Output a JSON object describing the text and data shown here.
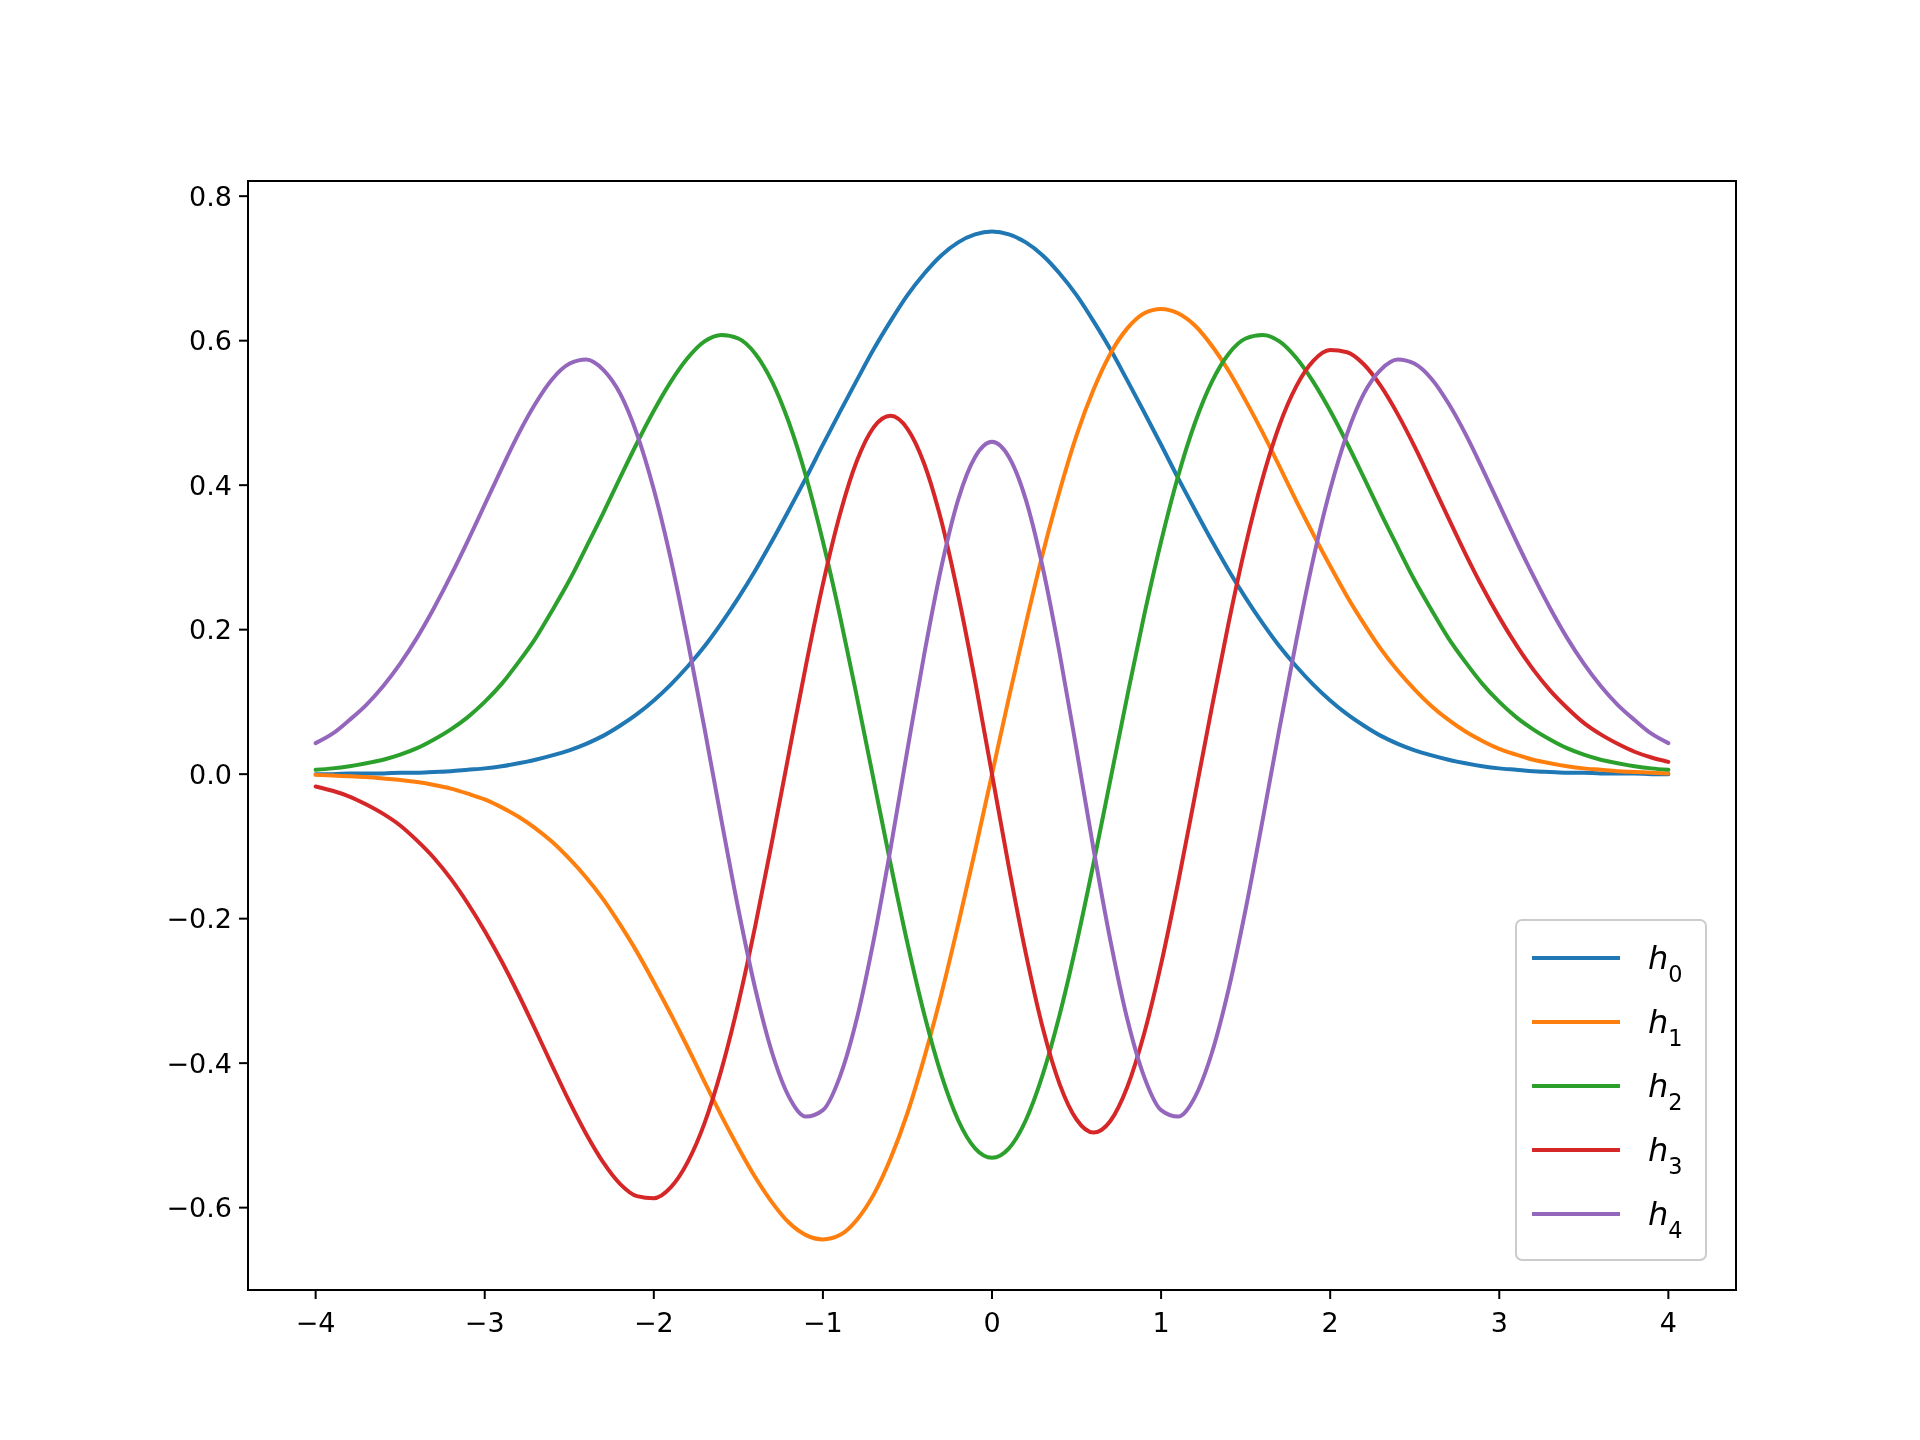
{
  "chart_data": {
    "type": "line",
    "x": [
      -4,
      -3.9,
      -3.8,
      -3.7,
      -3.6,
      -3.5,
      -3.4,
      -3.3,
      -3.2,
      -3.1,
      -3,
      -2.9,
      -2.8,
      -2.7,
      -2.6,
      -2.5,
      -2.4,
      -2.3,
      -2.2,
      -2.1,
      -2,
      -1.9,
      -1.8,
      -1.7,
      -1.6,
      -1.5,
      -1.4,
      -1.3,
      -1.2,
      -1.1,
      -1,
      -0.9,
      -0.8,
      -0.7,
      -0.6,
      -0.5,
      -0.4,
      -0.3,
      -0.2,
      -0.1,
      0,
      0.1,
      0.2,
      0.3,
      0.4,
      0.5,
      0.6,
      0.7,
      0.8,
      0.9,
      1,
      1.1,
      1.2,
      1.3,
      1.4,
      1.5,
      1.6,
      1.7,
      1.8,
      1.9,
      2,
      2.1,
      2.2,
      2.3,
      2.4,
      2.5,
      2.6,
      2.7,
      2.8,
      2.9,
      3,
      3.1,
      3.2,
      3.3,
      3.4,
      3.5,
      3.6,
      3.7,
      3.8,
      3.9,
      4
    ],
    "series": [
      {
        "name": "h$_{0}$",
        "color": "#1f77b4",
        "values": [
          0,
          0,
          0.001,
          0.001,
          0.001,
          0.002,
          0.002,
          0.003,
          0.004,
          0.006,
          0.008,
          0.011,
          0.015,
          0.02,
          0.026,
          0.033,
          0.042,
          0.053,
          0.067,
          0.083,
          0.102,
          0.124,
          0.149,
          0.177,
          0.209,
          0.244,
          0.282,
          0.323,
          0.366,
          0.41,
          0.456,
          0.501,
          0.545,
          0.588,
          0.627,
          0.663,
          0.693,
          0.718,
          0.736,
          0.747,
          0.751,
          0.747,
          0.736,
          0.718,
          0.693,
          0.663,
          0.627,
          0.588,
          0.545,
          0.501,
          0.456,
          0.41,
          0.366,
          0.323,
          0.282,
          0.244,
          0.209,
          0.177,
          0.149,
          0.124,
          0.102,
          0.083,
          0.067,
          0.053,
          0.042,
          0.033,
          0.026,
          0.02,
          0.015,
          0.011,
          0.008,
          0.006,
          0.004,
          0.003,
          0.002,
          0.002,
          0.001,
          0.001,
          0.001,
          0,
          0
        ]
      },
      {
        "name": "h$_{1}$",
        "color": "#ff7f0e",
        "values": [
          -0.001,
          -0.002,
          -0.003,
          -0.004,
          -0.006,
          -0.008,
          -0.011,
          -0.015,
          -0.02,
          -0.027,
          -0.035,
          -0.046,
          -0.059,
          -0.075,
          -0.094,
          -0.117,
          -0.143,
          -0.173,
          -0.208,
          -0.246,
          -0.288,
          -0.332,
          -0.378,
          -0.426,
          -0.473,
          -0.517,
          -0.558,
          -0.593,
          -0.621,
          -0.638,
          -0.644,
          -0.638,
          -0.617,
          -0.582,
          -0.532,
          -0.469,
          -0.392,
          -0.305,
          -0.208,
          -0.106,
          0,
          0.106,
          0.208,
          0.305,
          0.392,
          0.469,
          0.532,
          0.582,
          0.617,
          0.638,
          0.644,
          0.638,
          0.621,
          0.593,
          0.558,
          0.517,
          0.473,
          0.426,
          0.378,
          0.332,
          0.288,
          0.246,
          0.208,
          0.173,
          0.143,
          0.117,
          0.094,
          0.075,
          0.059,
          0.046,
          0.035,
          0.027,
          0.02,
          0.015,
          0.011,
          0.008,
          0.006,
          0.004,
          0.003,
          0.002,
          0.001
        ]
      },
      {
        "name": "h$_{2}$",
        "color": "#2ca02c",
        "values": [
          0.006,
          0.008,
          0.011,
          0.015,
          0.02,
          0.027,
          0.036,
          0.048,
          0.062,
          0.079,
          0.1,
          0.125,
          0.155,
          0.188,
          0.227,
          0.268,
          0.314,
          0.361,
          0.41,
          0.458,
          0.503,
          0.543,
          0.576,
          0.599,
          0.608,
          0.603,
          0.582,
          0.543,
          0.486,
          0.412,
          0.322,
          0.22,
          0.108,
          -0.008,
          -0.124,
          -0.234,
          -0.333,
          -0.416,
          -0.479,
          -0.518,
          -0.531,
          -0.518,
          -0.479,
          -0.416,
          -0.333,
          -0.234,
          -0.124,
          -0.008,
          0.108,
          0.22,
          0.322,
          0.412,
          0.486,
          0.543,
          0.582,
          0.603,
          0.608,
          0.599,
          0.576,
          0.543,
          0.503,
          0.458,
          0.41,
          0.361,
          0.314,
          0.268,
          0.227,
          0.188,
          0.155,
          0.125,
          0.1,
          0.079,
          0.062,
          0.048,
          0.036,
          0.027,
          0.02,
          0.015,
          0.011,
          0.008,
          0.006
        ]
      },
      {
        "name": "h$_{3}$",
        "color": "#d62728",
        "values": [
          -0.017,
          -0.023,
          -0.031,
          -0.042,
          -0.055,
          -0.071,
          -0.092,
          -0.116,
          -0.145,
          -0.179,
          -0.217,
          -0.259,
          -0.305,
          -0.354,
          -0.404,
          -0.453,
          -0.498,
          -0.537,
          -0.567,
          -0.584,
          -0.587,
          -0.572,
          -0.537,
          -0.483,
          -0.409,
          -0.317,
          -0.21,
          -0.092,
          0.03,
          0.151,
          0.263,
          0.359,
          0.433,
          0.48,
          0.496,
          0.478,
          0.429,
          0.351,
          0.248,
          0.129,
          0,
          -0.129,
          -0.248,
          -0.351,
          -0.429,
          -0.478,
          -0.496,
          -0.48,
          -0.433,
          -0.359,
          -0.263,
          -0.151,
          -0.03,
          0.092,
          0.21,
          0.317,
          0.409,
          0.483,
          0.537,
          0.572,
          0.587,
          0.584,
          0.567,
          0.537,
          0.498,
          0.453,
          0.404,
          0.354,
          0.305,
          0.259,
          0.217,
          0.179,
          0.145,
          0.116,
          0.092,
          0.071,
          0.055,
          0.042,
          0.031,
          0.023,
          0.017
        ]
      },
      {
        "name": "h$_{4}$",
        "color": "#9467bd",
        "values": [
          0.043,
          0.056,
          0.075,
          0.096,
          0.122,
          0.153,
          0.189,
          0.23,
          0.275,
          0.323,
          0.373,
          0.423,
          0.471,
          0.513,
          0.547,
          0.568,
          0.574,
          0.56,
          0.527,
          0.471,
          0.394,
          0.298,
          0.185,
          0.063,
          -0.064,
          -0.187,
          -0.297,
          -0.386,
          -0.447,
          -0.474,
          -0.465,
          -0.419,
          -0.339,
          -0.23,
          -0.103,
          0.034,
          0.167,
          0.286,
          0.38,
          0.439,
          0.46,
          0.439,
          0.38,
          0.286,
          0.167,
          0.034,
          -0.103,
          -0.23,
          -0.339,
          -0.419,
          -0.465,
          -0.474,
          -0.447,
          -0.386,
          -0.297,
          -0.187,
          -0.064,
          0.063,
          0.185,
          0.298,
          0.394,
          0.471,
          0.527,
          0.56,
          0.574,
          0.568,
          0.547,
          0.513,
          0.471,
          0.423,
          0.373,
          0.323,
          0.275,
          0.23,
          0.189,
          0.153,
          0.122,
          0.096,
          0.075,
          0.056,
          0.043
        ]
      }
    ],
    "xlim": [
      -4.4,
      4.4
    ],
    "xticks": [
      {
        "value": -4,
        "label": "−4"
      },
      {
        "value": -3,
        "label": "−3"
      },
      {
        "value": -2,
        "label": "−2"
      },
      {
        "value": -1,
        "label": "−1"
      },
      0,
      1,
      2,
      3,
      4
    ],
    "ylim": [
      -0.714,
      0.821
    ],
    "yticks": [
      {
        "value": -0.6,
        "label": "−0.6"
      },
      {
        "value": -0.4,
        "label": "−0.4"
      },
      {
        "value": -0.2,
        "label": "−0.2"
      },
      {
        "value": 0,
        "label": "0.0"
      },
      {
        "value": 0.2,
        "label": "0.2"
      },
      {
        "value": 0.4,
        "label": "0.4"
      },
      {
        "value": 0.6,
        "label": "0.6"
      },
      {
        "value": 0.8,
        "label": "0.8"
      }
    ],
    "legend": "bottom right",
    "grid": false,
    "marker": "none",
    "line_style": "solid"
  }
}
